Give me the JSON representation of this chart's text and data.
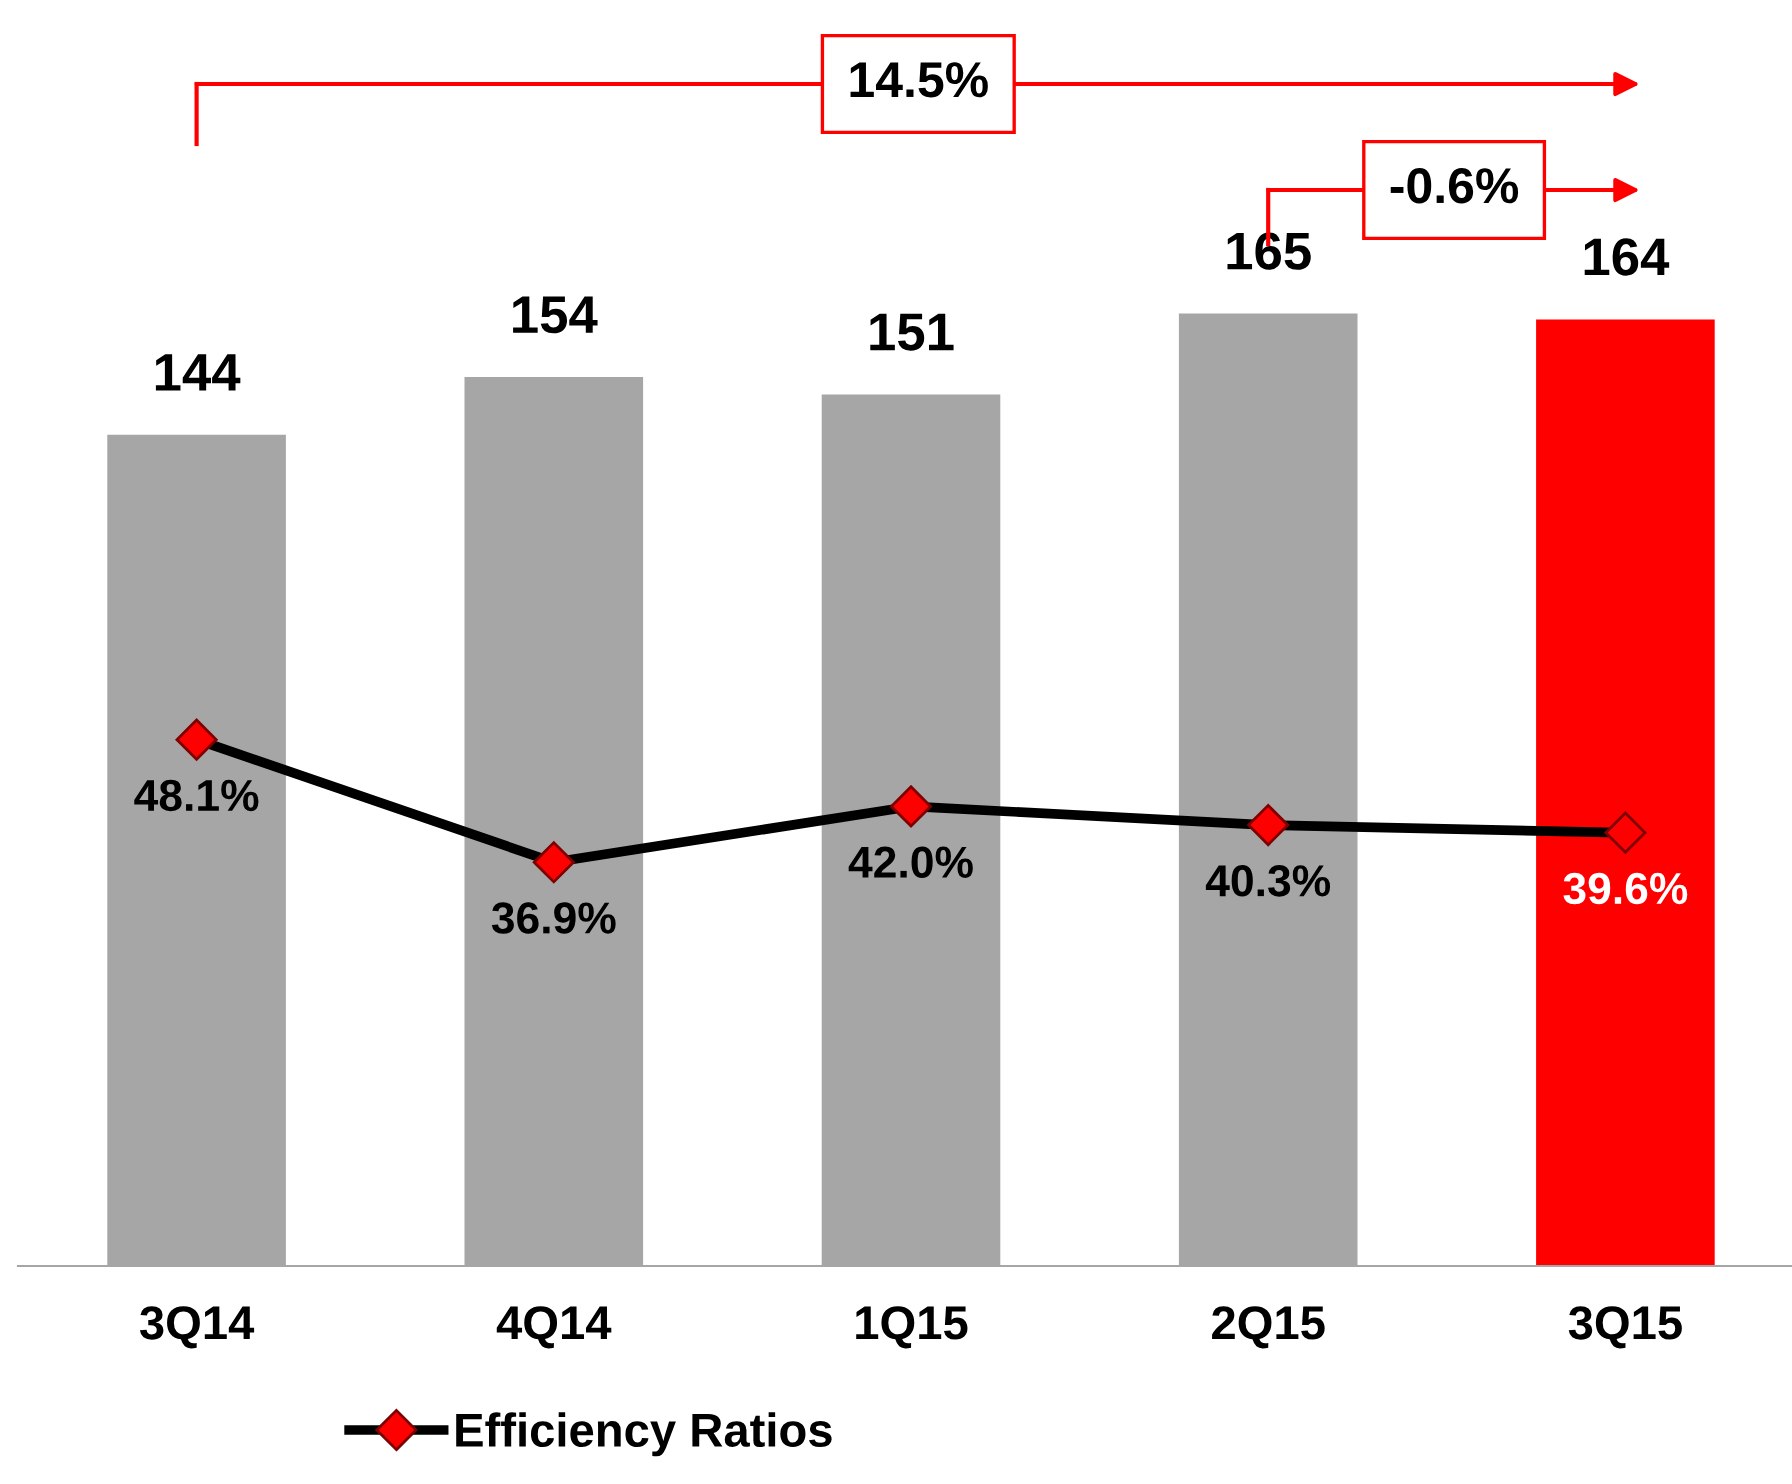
{
  "chart_data": {
    "type": "bar",
    "categories": [
      "3Q14",
      "4Q14",
      "1Q15",
      "2Q15",
      "3Q15"
    ],
    "tick_labels": "x",
    "grid": false,
    "legend": "bottom",
    "data_labels": true,
    "series": [
      {
        "values": [
          144,
          154,
          151,
          165,
          164
        ],
        "colors": [
          "#a6a6a6",
          "#a6a6a6",
          "#a6a6a6",
          "#a6a6a6",
          "#ff0000"
        ]
      },
      {
        "type": "line",
        "name": "Efficiency Ratios",
        "axis": "y2",
        "color": "#000000",
        "marker": "diamond",
        "values": [
          48.1,
          36.9,
          42.0,
          40.3,
          39.6
        ],
        "value_labels": [
          "48.1%",
          "36.9%",
          "42.0%",
          "40.3%",
          "39.6%"
        ]
      }
    ],
    "annotations": [
      "14.5%",
      "-0.6%"
    ]
  }
}
